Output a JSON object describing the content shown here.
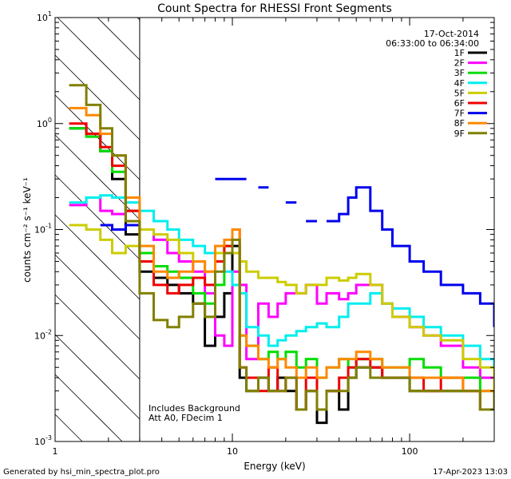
{
  "chart_data": {
    "type": "line",
    "title": "Count Spectra for RHESSI Front Segments",
    "xlabel": "Energy (keV)",
    "ylabel": "counts cm⁻² s⁻¹ keV⁻¹",
    "x_scale": "log",
    "y_scale": "log",
    "xlim": [
      1,
      300
    ],
    "ylim": [
      0.001,
      10
    ],
    "grid": false,
    "legend_position": "top-right",
    "date": "17-Oct-2014",
    "time_range": "06:33:00 to 06:34:00",
    "annotation_lines": [
      "Includes Background",
      "Att A0, FDecim 1"
    ],
    "footer_left": "Generated by hsi_min_spectra_plot.pro",
    "footer_right": "17-Apr-2023 13:03",
    "shaded_region_xmax": 3,
    "x_tick_labels": [
      {
        "value": 1,
        "label": "1"
      },
      {
        "value": 10,
        "label": "10"
      },
      {
        "value": 100,
        "label": "100"
      }
    ],
    "y_tick_labels": [
      {
        "exp": "-3",
        "value": 0.001
      },
      {
        "exp": "-2",
        "value": 0.01
      },
      {
        "exp": "-1",
        "value": 0.1
      },
      {
        "exp": "0",
        "value": 1
      },
      {
        "exp": "1",
        "value": 10
      }
    ],
    "energy_bins": [
      1.2,
      1.5,
      1.8,
      2.1,
      2.5,
      3,
      3.6,
      4.3,
      5,
      6,
      7,
      8,
      9,
      10,
      11,
      12,
      14,
      16,
      18,
      20,
      23,
      26,
      30,
      34,
      40,
      45,
      50,
      60,
      70,
      80,
      100,
      120,
      150,
      200,
      250,
      300
    ],
    "series": [
      {
        "name": "1F",
        "color": "#000000",
        "values": [
          0.9,
          0.8,
          0.55,
          0.3,
          0.09,
          0.04,
          0.035,
          0.03,
          0.025,
          0.02,
          0.008,
          0.015,
          0.025,
          0.07,
          0.004,
          0.003,
          0.004,
          0.003,
          0.004,
          0.003,
          0.002,
          0.003,
          0.0015,
          0.003,
          0.002,
          0.004,
          0.005,
          0.005,
          0.004,
          0.004,
          0.003,
          0.003,
          0.003,
          0.003,
          0.002,
          0.003
        ]
      },
      {
        "name": "2F",
        "color": "#ff00ff",
        "values": [
          0.17,
          0.2,
          0.15,
          0.14,
          0.15,
          0.1,
          0.08,
          0.06,
          0.05,
          0.04,
          0.025,
          0.01,
          0.008,
          0.04,
          0.03,
          0.006,
          0.02,
          0.015,
          0.02,
          0.025,
          0.025,
          0.03,
          0.02,
          0.025,
          0.022,
          0.025,
          0.03,
          0.03,
          0.02,
          0.015,
          0.012,
          0.01,
          0.008,
          0.005,
          0.004,
          0.003
        ]
      },
      {
        "name": "3F",
        "color": "#00dd00",
        "values": [
          0.9,
          0.75,
          0.55,
          0.35,
          0.15,
          0.06,
          0.045,
          0.04,
          0.035,
          0.025,
          0.02,
          0.03,
          0.07,
          0.06,
          0.01,
          0.008,
          0.006,
          0.007,
          0.006,
          0.007,
          0.005,
          0.006,
          0.004,
          0.005,
          0.006,
          0.005,
          0.006,
          0.006,
          0.005,
          0.005,
          0.006,
          0.005,
          0.004,
          0.004,
          0.003,
          0.003
        ]
      },
      {
        "name": "4F",
        "color": "#00eeee",
        "values": [
          0.18,
          0.2,
          0.21,
          0.2,
          0.18,
          0.15,
          0.12,
          0.1,
          0.08,
          0.07,
          0.06,
          0.05,
          0.04,
          0.03,
          0.025,
          0.012,
          0.01,
          0.008,
          0.009,
          0.01,
          0.011,
          0.012,
          0.013,
          0.012,
          0.015,
          0.02,
          0.02,
          0.025,
          0.02,
          0.018,
          0.015,
          0.012,
          0.01,
          0.008,
          0.006,
          0.004
        ]
      },
      {
        "name": "5F",
        "color": "#cccc00",
        "values": [
          0.11,
          0.1,
          0.08,
          0.06,
          0.07,
          0.1,
          0.09,
          0.08,
          0.06,
          0.05,
          0.04,
          0.06,
          0.07,
          0.06,
          0.05,
          0.04,
          0.035,
          0.035,
          0.032,
          0.03,
          0.025,
          0.03,
          0.03,
          0.035,
          0.033,
          0.035,
          0.038,
          0.03,
          0.02,
          0.015,
          0.012,
          0.01,
          0.009,
          0.006,
          0.005,
          0.003
        ]
      },
      {
        "name": "6F",
        "color": "#ee0000",
        "values": [
          1.0,
          0.8,
          0.6,
          0.4,
          0.15,
          0.05,
          0.03,
          0.025,
          0.03,
          0.035,
          0.03,
          0.05,
          0.07,
          0.1,
          0.005,
          0.004,
          0.003,
          0.005,
          0.003,
          0.004,
          0.002,
          0.004,
          0.002,
          0.003,
          0.004,
          0.005,
          0.006,
          0.005,
          0.004,
          0.004,
          0.004,
          0.003,
          0.004,
          0.003,
          0.002,
          0.003
        ]
      },
      {
        "name": "7F",
        "color": "#0000ee",
        "values": [
          null,
          null,
          0.11,
          0.1,
          0.11,
          null,
          null,
          null,
          null,
          null,
          null,
          0.3,
          0.3,
          0.3,
          0.3,
          null,
          0.25,
          null,
          null,
          0.18,
          null,
          0.12,
          null,
          0.12,
          0.14,
          0.2,
          0.25,
          0.15,
          0.1,
          0.07,
          0.05,
          0.04,
          0.03,
          0.025,
          0.02,
          0.012
        ]
      },
      {
        "name": "8F",
        "color": "#ff8800",
        "values": [
          1.4,
          1.2,
          0.8,
          0.5,
          0.2,
          0.07,
          0.04,
          0.035,
          0.04,
          0.05,
          0.04,
          0.07,
          0.08,
          0.1,
          0.01,
          0.008,
          0.006,
          0.005,
          0.006,
          0.005,
          0.004,
          0.005,
          0.004,
          0.005,
          0.006,
          0.006,
          0.007,
          0.006,
          0.005,
          0.005,
          0.004,
          0.004,
          0.004,
          0.003,
          0.003,
          0.003
        ]
      },
      {
        "name": "9F",
        "color": "#808000",
        "values": [
          2.3,
          1.5,
          0.9,
          0.5,
          0.12,
          0.025,
          0.014,
          0.012,
          0.015,
          0.02,
          0.015,
          0.04,
          0.06,
          0.08,
          0.005,
          0.003,
          0.004,
          0.003,
          0.003,
          0.004,
          0.002,
          0.003,
          0.002,
          0.003,
          0.003,
          0.004,
          0.005,
          0.004,
          0.004,
          0.004,
          0.003,
          0.003,
          0.003,
          0.003,
          0.002,
          0.003
        ]
      }
    ]
  }
}
